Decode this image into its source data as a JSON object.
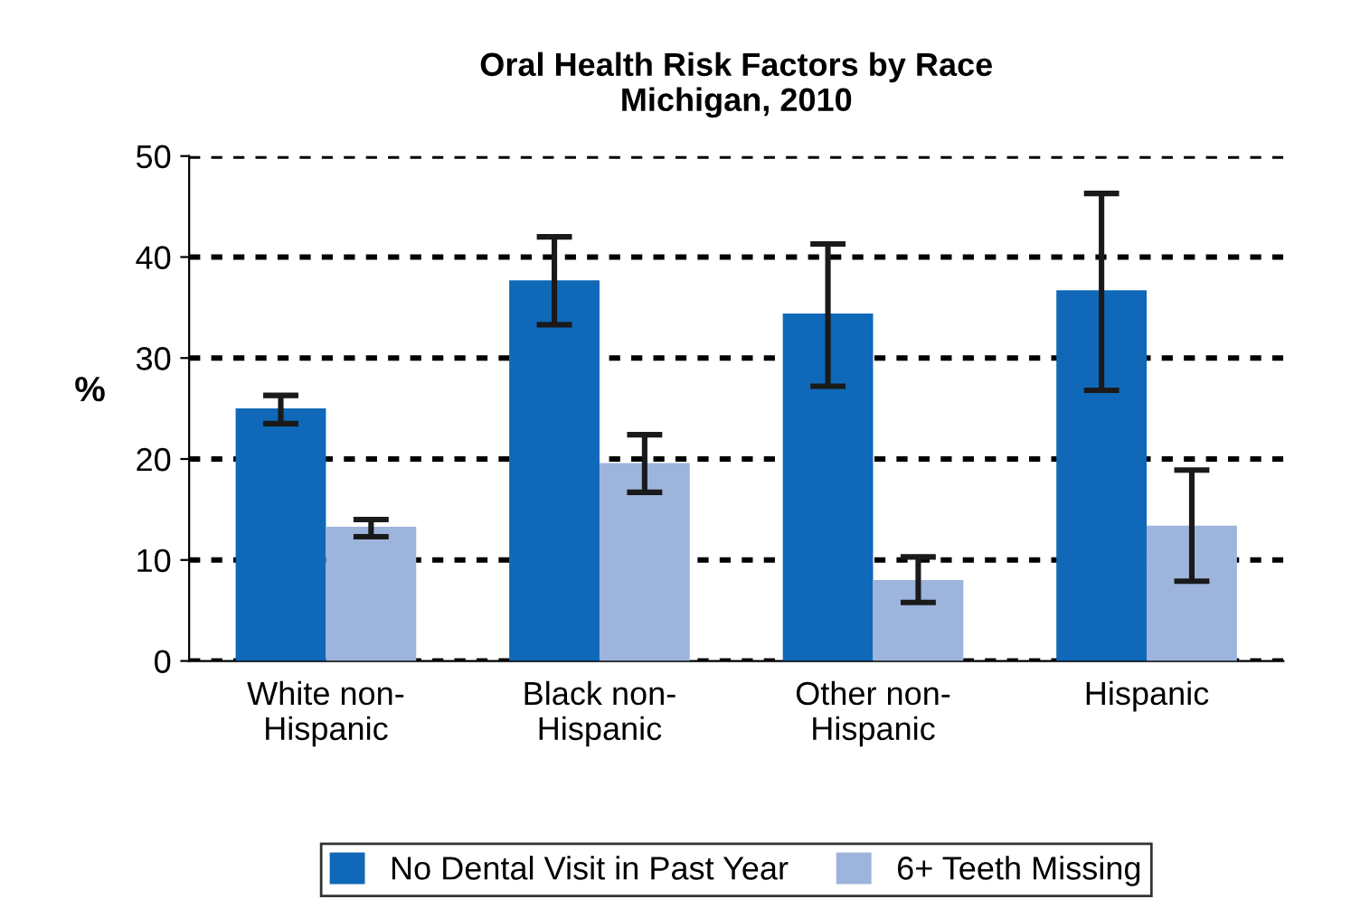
{
  "chart_data": {
    "type": "bar",
    "title": "Oral Health Risk Factors by Race\nMichigan, 2010",
    "ylabel": "%",
    "categories": [
      "White non-\nHispanic",
      "Black non-\nHispanic",
      "Other non-\nHispanic",
      "Hispanic"
    ],
    "series": [
      {
        "name": "No Dental Visit in Past Year",
        "color": "#1068b8",
        "values": [
          25.0,
          37.7,
          34.4,
          36.7
        ],
        "errors": [
          [
            23.5,
            26.3
          ],
          [
            33.3,
            42.0
          ],
          [
            27.2,
            41.3
          ],
          [
            26.8,
            46.3
          ]
        ]
      },
      {
        "name": "6+ Teeth Missing",
        "color": "#9db4dc",
        "values": [
          13.3,
          19.6,
          8.0,
          13.4
        ],
        "errors": [
          [
            12.3,
            14.0
          ],
          [
            16.7,
            22.4
          ],
          [
            5.8,
            10.3
          ],
          [
            7.9,
            18.9
          ]
        ]
      }
    ],
    "ylim": [
      0,
      50
    ],
    "yticks": [
      0,
      10,
      20,
      30,
      40,
      50
    ],
    "grid": "y",
    "legend": "bottom"
  }
}
